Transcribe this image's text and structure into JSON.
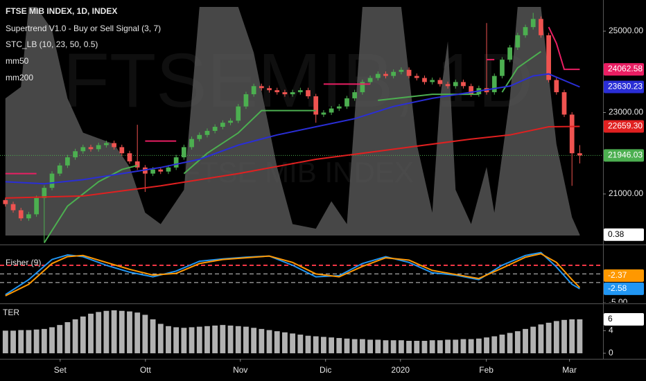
{
  "chart_data": [
    {
      "type": "candlestick",
      "title": "FTSE MIB INDEX, 1D, INDEX",
      "watermark": "FTSEMIB, 1D",
      "watermark_subtitle": "FTSE MIB INDEX",
      "x": [
        0,
        1,
        2,
        3,
        4,
        5,
        6,
        7,
        8,
        9,
        10,
        11,
        12,
        13,
        14,
        15,
        16,
        17,
        18,
        19,
        20,
        21,
        22,
        23,
        24,
        25,
        26,
        27,
        28,
        29,
        30,
        31,
        32,
        33,
        34,
        35,
        36,
        37,
        38,
        39,
        40,
        41,
        42,
        43,
        44,
        45,
        46,
        47,
        48,
        49,
        50,
        51,
        52,
        53,
        54,
        55,
        56,
        57,
        58,
        59,
        60,
        61,
        62,
        63,
        64,
        65,
        66,
        67,
        68,
        69,
        70,
        71,
        72,
        73,
        74
      ],
      "open": [
        20850,
        20750,
        20600,
        20400,
        20500,
        20900,
        21150,
        21500,
        21700,
        21900,
        22050,
        22150,
        22100,
        22200,
        22250,
        22150,
        22000,
        21800,
        21650,
        21500,
        21600,
        21550,
        21650,
        21900,
        22150,
        22350,
        22450,
        22550,
        22650,
        22750,
        22800,
        23150,
        23450,
        23650,
        23600,
        23550,
        23500,
        23450,
        23500,
        23550,
        23400,
        22950,
        23000,
        23100,
        23150,
        23350,
        23500,
        23750,
        23850,
        23950,
        23900,
        24000,
        24050,
        23900,
        23850,
        23750,
        23800,
        23700,
        23650,
        23750,
        23650,
        23450,
        23600,
        23500,
        23900,
        24300,
        24600,
        24900,
        25100,
        25300,
        24900,
        23800,
        23500,
        22950,
        22000
      ],
      "high": [
        20910,
        20810,
        20660,
        20560,
        20960,
        21210,
        21560,
        21760,
        21960,
        22110,
        22210,
        22210,
        22260,
        22310,
        22310,
        22210,
        22060,
        22700,
        21710,
        21660,
        21660,
        21710,
        21960,
        22210,
        22410,
        22510,
        22610,
        22710,
        22810,
        22860,
        23210,
        23510,
        23710,
        23710,
        23660,
        23610,
        23560,
        23560,
        23610,
        23610,
        23460,
        23060,
        23160,
        23210,
        23410,
        23560,
        23810,
        23910,
        24010,
        24010,
        24060,
        24110,
        24110,
        23960,
        23910,
        23860,
        23860,
        23760,
        23810,
        23810,
        23710,
        23660,
        25200,
        23960,
        24360,
        24660,
        24960,
        25160,
        25450,
        25360,
        24960,
        23860,
        23560,
        23010,
        22200
      ],
      "low": [
        20690,
        20540,
        20340,
        20340,
        20440,
        19800,
        21090,
        21440,
        21640,
        21840,
        21990,
        22040,
        22040,
        22140,
        22090,
        21940,
        21740,
        21590,
        21050,
        21440,
        21490,
        21490,
        21590,
        21840,
        22090,
        22290,
        22390,
        22490,
        22590,
        22690,
        22740,
        23090,
        23390,
        23540,
        23490,
        23440,
        23390,
        23390,
        23440,
        23340,
        22750,
        22890,
        22940,
        23040,
        23090,
        23290,
        23440,
        23690,
        23790,
        23840,
        23840,
        23940,
        23840,
        23790,
        23690,
        23690,
        23640,
        23590,
        23590,
        23590,
        23390,
        23390,
        23440,
        23440,
        23840,
        24240,
        24540,
        24840,
        25040,
        24840,
        23740,
        23440,
        22890,
        21200,
        21750
      ],
      "close": [
        20750,
        20600,
        20400,
        20500,
        20900,
        21150,
        21500,
        21700,
        21900,
        22050,
        22150,
        22100,
        22200,
        22250,
        22150,
        22000,
        21800,
        21650,
        21500,
        21600,
        21550,
        21650,
        21900,
        22150,
        22350,
        22450,
        22550,
        22650,
        22750,
        22800,
        23150,
        23450,
        23650,
        23600,
        23550,
        23500,
        23450,
        23500,
        23550,
        23400,
        22950,
        23000,
        23100,
        23150,
        23350,
        23500,
        23750,
        23850,
        23950,
        23900,
        24000,
        24050,
        23900,
        23850,
        23750,
        23800,
        23700,
        23650,
        23750,
        23650,
        23450,
        23600,
        23500,
        23900,
        24300,
        24600,
        24900,
        25100,
        25300,
        24900,
        23800,
        23500,
        22950,
        22000,
        21946.03
      ],
      "up_color": "#4caf50",
      "down_color": "#ef5350",
      "series": [
        {
          "name": "Supertrend V1.0 - Buy or Sell Signal (3, 7)",
          "type": "line",
          "x": [
            0,
            4,
            5,
            8,
            12,
            15,
            17,
            18,
            22,
            23,
            26,
            30,
            33,
            40,
            41,
            47,
            48,
            55,
            61,
            62,
            63,
            64,
            66,
            69,
            70,
            71,
            72,
            74
          ],
          "values": [
            21500,
            21500,
            19800,
            20700,
            21300,
            21600,
            21700,
            22300,
            22300,
            21500,
            22000,
            22500,
            23050,
            23050,
            23700,
            23700,
            23300,
            23450,
            23450,
            24300,
            24300,
            23500,
            24100,
            24500,
            25100,
            24700,
            24062.58,
            24062.58
          ],
          "colors": [
            "#e91e63",
            "#e91e63",
            "#4caf50",
            "#4caf50",
            "#4caf50",
            "#4caf50",
            "#4caf50",
            "#e91e63",
            "#e91e63",
            "#4caf50",
            "#4caf50",
            "#4caf50",
            "#4caf50",
            "#4caf50",
            "#e91e63",
            "#e91e63",
            "#4caf50",
            "#4caf50",
            "#4caf50",
            "#e91e63",
            "#e91e63",
            "#4caf50",
            "#4caf50",
            "#4caf50",
            "#e91e63",
            "#e91e63",
            "#e91e63",
            "#e91e63"
          ]
        },
        {
          "name": "STC_LB (10, 23, 50, 0.5)",
          "type": "area",
          "axis": "y2",
          "color": "#5f5f5f",
          "x": [
            0,
            2,
            3,
            4,
            6,
            8,
            10,
            14,
            16,
            18,
            20,
            23,
            25,
            30,
            32,
            35,
            37,
            40,
            42,
            44,
            46,
            51,
            53,
            55,
            56,
            57,
            58,
            60,
            62,
            63,
            65,
            66,
            69,
            71,
            73,
            74
          ],
          "values": [
            60,
            65,
            100,
            100,
            90,
            60,
            45,
            40,
            30,
            10,
            5,
            20,
            100,
            100,
            80,
            30,
            5,
            3,
            15,
            5,
            100,
            100,
            40,
            10,
            60,
            85,
            20,
            5,
            30,
            10,
            60,
            100,
            100,
            40,
            8,
            0.38
          ]
        },
        {
          "name": "mm50",
          "type": "line",
          "color": "#2a2ed6",
          "x": [
            0,
            5,
            10,
            15,
            20,
            25,
            30,
            35,
            40,
            45,
            50,
            55,
            60,
            65,
            68,
            70,
            74
          ],
          "values": [
            21300,
            21250,
            21350,
            21500,
            21650,
            21850,
            22200,
            22450,
            22650,
            22850,
            23150,
            23350,
            23500,
            23650,
            23900,
            23950,
            23630.23
          ]
        },
        {
          "name": "mm200",
          "type": "line",
          "color": "#e02020",
          "x": [
            0,
            10,
            20,
            30,
            40,
            50,
            60,
            65,
            70,
            74
          ],
          "values": [
            20900,
            20950,
            21200,
            21500,
            21850,
            22100,
            22350,
            22450,
            22650,
            22659.3
          ]
        }
      ],
      "xlim": [
        -0.7,
        77
      ],
      "ylim": [
        19774,
        25766
      ],
      "y2lim": [
        -3.64,
        103.03
      ],
      "yticks": [
        {
          "value": 25000,
          "label": "25000.00"
        },
        {
          "value": 23000,
          "label": "23000.00"
        },
        {
          "value": 21000,
          "label": "21000.00"
        }
      ],
      "xticks": [
        {
          "value": 7.05,
          "label": "Set"
        },
        {
          "value": 18.04,
          "label": "Ott"
        },
        {
          "value": 30.27,
          "label": "Nov"
        },
        {
          "value": 41.25,
          "label": "Dic"
        },
        {
          "value": 50.9,
          "label": "2020"
        },
        {
          "value": 61.96,
          "label": "Feb"
        },
        {
          "value": 72.68,
          "label": "Mar"
        }
      ],
      "tags": [
        {
          "value": 24062.58,
          "color": "#e91e63"
        },
        {
          "value": 23630.23,
          "color": "#2a2ed6"
        },
        {
          "value": 22659.3,
          "label": "22659.30",
          "color": "#e02020"
        },
        {
          "value": 21946.03,
          "color": "#4caf50"
        },
        {
          "value": 0.38,
          "axis": "y2",
          "color": "#ffffff"
        }
      ]
    },
    {
      "type": "line",
      "title": "Fisher (9)",
      "x": [
        0,
        3,
        6,
        8,
        10,
        13,
        16,
        19,
        22,
        25,
        28,
        31,
        34,
        37,
        40,
        43,
        46,
        49,
        52,
        55,
        58,
        61,
        64,
        67,
        69,
        71,
        73,
        74
      ],
      "series": [
        {
          "color": "#2196f3",
          "values": [
            -3.6,
            -1,
            2.5,
            3.3,
            3,
            1.5,
            0.3,
            -0.5,
            0.5,
            2.2,
            2.6,
            2.9,
            3.1,
            1.5,
            -0.5,
            -0.3,
            1.8,
            3,
            2,
            0.2,
            -0.2,
            -1,
            1.5,
            3.2,
            3.7,
            1.2,
            -1.8,
            -2.58
          ]
        },
        {
          "color": "#ff9800",
          "values": [
            -3.8,
            -1.8,
            1.8,
            3,
            3.2,
            2,
            0.8,
            -0.2,
            0.1,
            1.8,
            2.5,
            2.8,
            3.1,
            2,
            0,
            -0.5,
            1.3,
            2.8,
            2.4,
            0.6,
            -0.1,
            -0.8,
            1,
            2.9,
            3.5,
            2,
            -1,
            -2.37
          ]
        }
      ],
      "levels": [
        {
          "value": 1.5,
          "color": "#f23645"
        },
        {
          "value": 0,
          "color": "#d0d0d0"
        },
        {
          "value": -1.5,
          "color": "#d0d0d0"
        }
      ],
      "xlim": [
        -0.7,
        77
      ],
      "ylim": [
        -5,
        4.86
      ],
      "yticks": [
        {
          "value": -5,
          "label": "-5.00"
        }
      ],
      "tags": [
        {
          "value": -2.37,
          "color": "#ff9800"
        },
        {
          "value": -2.58,
          "color": "#2196f3"
        }
      ]
    },
    {
      "type": "bar",
      "title": "TER",
      "color": "#b2b2b2",
      "x": [
        0,
        1,
        2,
        3,
        4,
        5,
        6,
        7,
        8,
        9,
        10,
        11,
        12,
        13,
        14,
        15,
        16,
        17,
        18,
        19,
        20,
        21,
        22,
        23,
        24,
        25,
        26,
        27,
        28,
        29,
        30,
        31,
        32,
        33,
        34,
        35,
        36,
        37,
        38,
        39,
        40,
        41,
        42,
        43,
        44,
        45,
        46,
        47,
        48,
        49,
        50,
        51,
        52,
        53,
        54,
        55,
        56,
        57,
        58,
        59,
        60,
        61,
        62,
        63,
        64,
        65,
        66,
        67,
        68,
        69,
        70,
        71,
        72,
        73,
        74
      ],
      "values": [
        4,
        4,
        4.1,
        4.1,
        4.2,
        4.3,
        4.6,
        5,
        5.5,
        6,
        6.5,
        7,
        7.3,
        7.5,
        7.6,
        7.5,
        7.4,
        7.2,
        6.8,
        6,
        5.2,
        4.8,
        4.6,
        4.5,
        4.6,
        4.7,
        4.8,
        4.9,
        5,
        4.9,
        4.8,
        4.7,
        4.5,
        4.3,
        4.1,
        3.9,
        3.7,
        3.5,
        3.3,
        3.1,
        3,
        2.9,
        2.8,
        2.7,
        2.6,
        2.5,
        2.5,
        2.4,
        2.4,
        2.3,
        2.3,
        2.3,
        2.2,
        2.2,
        2.2,
        2.3,
        2.3,
        2.4,
        2.4,
        2.5,
        2.5,
        2.6,
        2.8,
        3,
        3.3,
        3.6,
        3.9,
        4.3,
        4.7,
        5.1,
        5.4,
        5.7,
        5.9,
        6,
        6
      ],
      "xlim": [
        -0.7,
        77
      ],
      "ylim": [
        -0.86,
        8.57
      ],
      "yticks": [
        0,
        4
      ],
      "tags": [
        {
          "value": 6,
          "color": "#ffffff"
        }
      ]
    }
  ]
}
